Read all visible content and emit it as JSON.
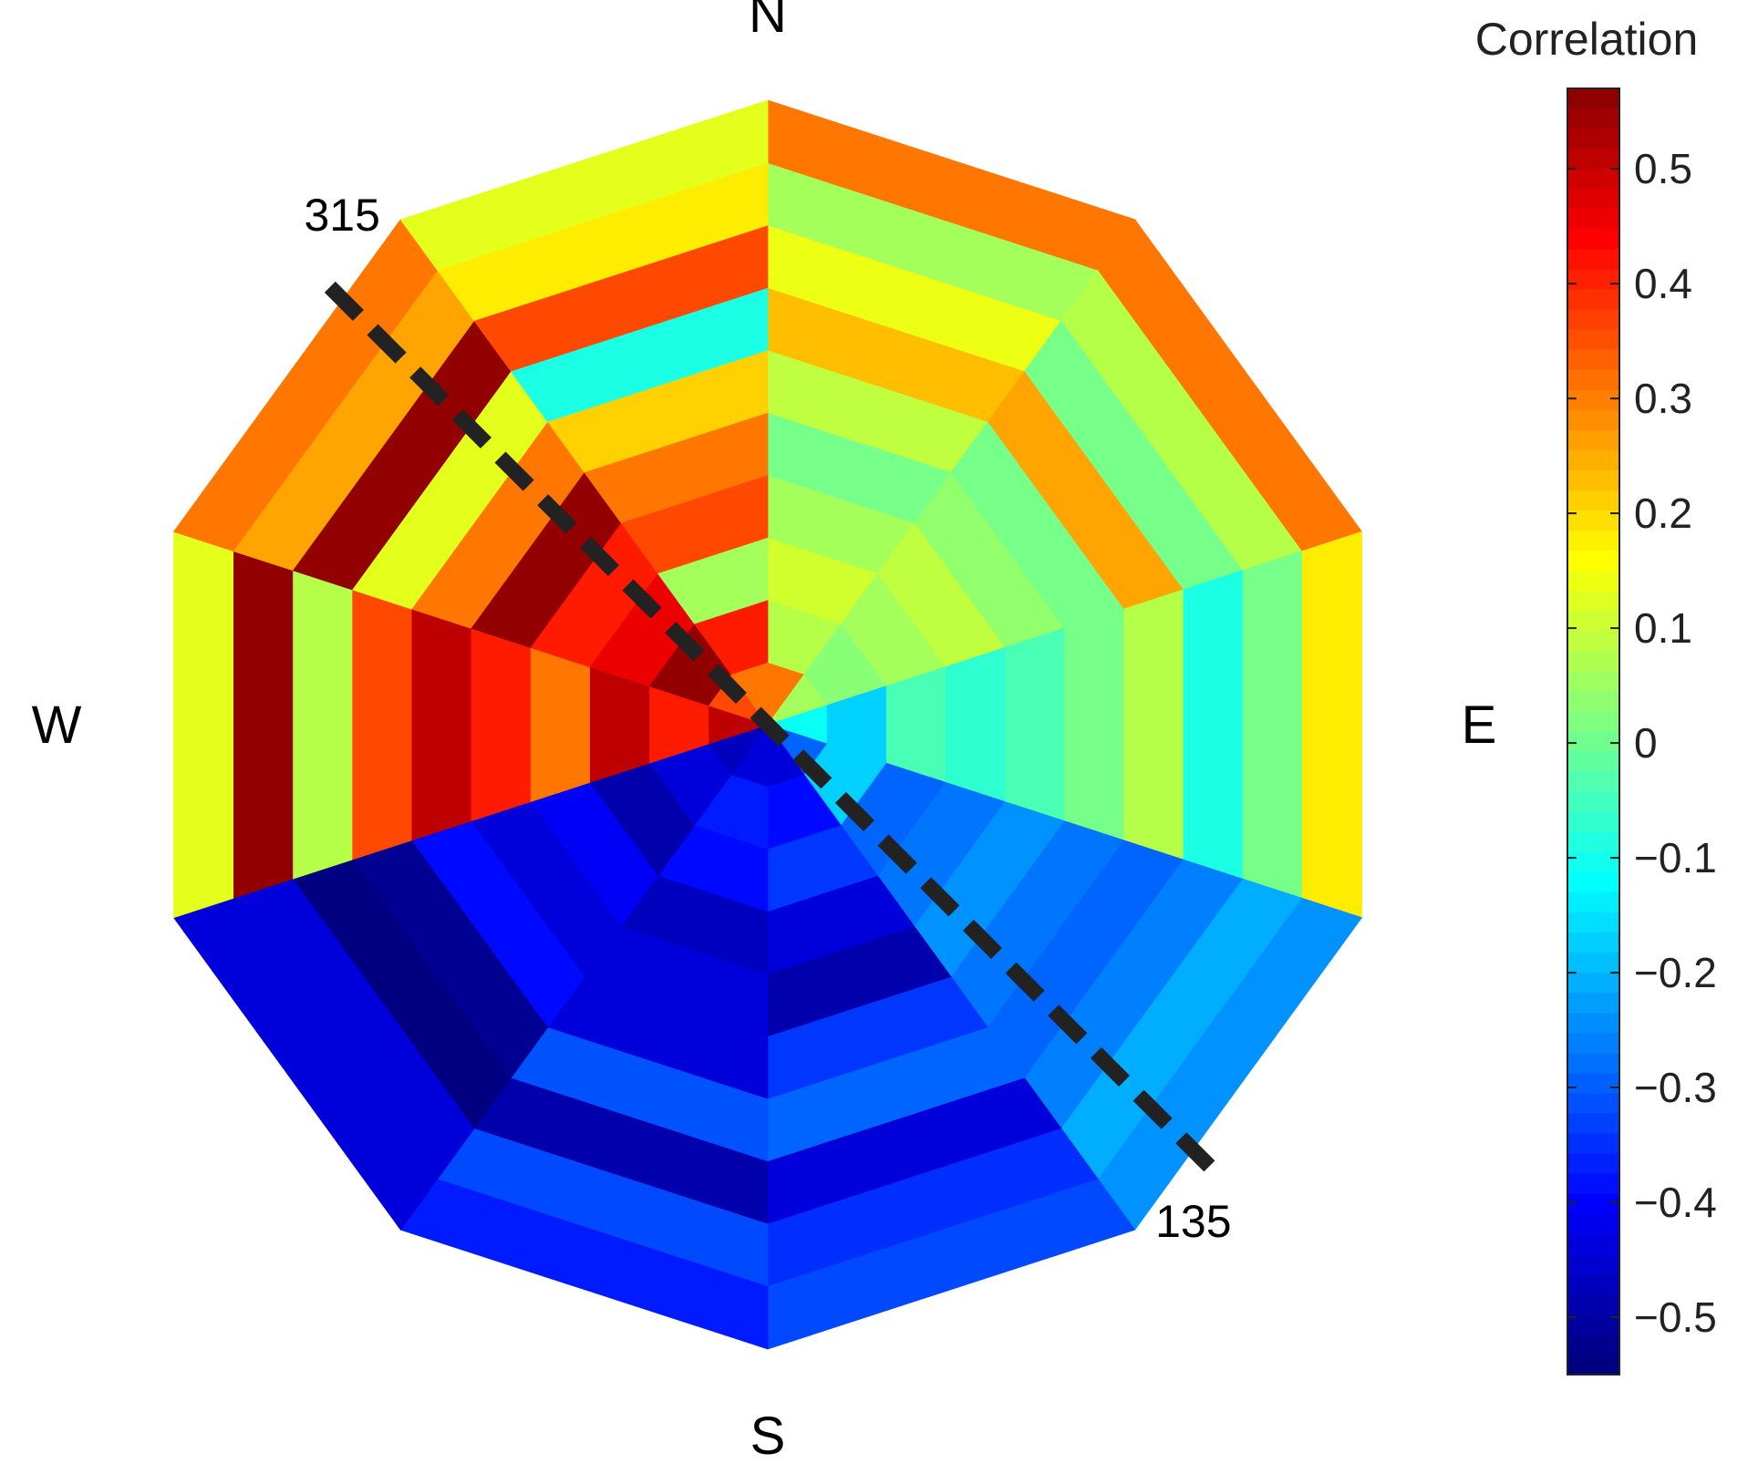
{
  "chart_data": {
    "type": "heatmap",
    "subtype": "polar-sector-rings",
    "direction_labels": [
      "N",
      "E",
      "S",
      "W"
    ],
    "direction_angles": [
      0,
      90,
      180,
      270
    ],
    "sector_count": 10,
    "ring_count": 10,
    "sectors": [
      {
        "from_deg": 0,
        "to_deg": 36,
        "rings": [
          0.3,
          0.07,
          0.1,
          0.05,
          0.0,
          0.08,
          0.22,
          0.13,
          0.05,
          0.3
        ]
      },
      {
        "from_deg": 36,
        "to_deg": 72,
        "rings": [
          0.05,
          0.02,
          0.05,
          0.08,
          0.03,
          0.0,
          0.25,
          0.0,
          0.07,
          0.3
        ]
      },
      {
        "from_deg": 72,
        "to_deg": 108,
        "rings": [
          -0.12,
          -0.18,
          -0.05,
          -0.08,
          -0.05,
          0.0,
          0.07,
          -0.1,
          0.0,
          0.17
        ]
      },
      {
        "from_deg": 108,
        "to_deg": 144,
        "rings": [
          -0.3,
          -0.18,
          -0.3,
          -0.28,
          -0.25,
          -0.28,
          -0.3,
          -0.27,
          -0.22,
          -0.25
        ]
      },
      {
        "from_deg": 144,
        "to_deg": 180,
        "rings": [
          -0.45,
          -0.4,
          -0.35,
          -0.45,
          -0.5,
          -0.35,
          -0.3,
          -0.45,
          -0.36,
          -0.33
        ]
      },
      {
        "from_deg": 180,
        "to_deg": 216,
        "rings": [
          -0.45,
          -0.38,
          -0.4,
          -0.48,
          -0.45,
          -0.45,
          -0.32,
          -0.5,
          -0.33,
          -0.38
        ]
      },
      {
        "from_deg": 216,
        "to_deg": 252,
        "rings": [
          -0.48,
          -0.45,
          -0.5,
          -0.42,
          -0.45,
          -0.4,
          -0.53,
          -0.55,
          -0.45,
          -0.45
        ]
      },
      {
        "from_deg": 252,
        "to_deg": 288,
        "rings": [
          0.5,
          0.4,
          0.5,
          0.3,
          0.4,
          0.5,
          0.35,
          0.07,
          0.55,
          0.12
        ]
      },
      {
        "from_deg": 288,
        "to_deg": 324,
        "rings": [
          0.35,
          0.55,
          0.45,
          0.4,
          0.55,
          0.3,
          0.12,
          0.55,
          0.25,
          0.3
        ]
      },
      {
        "from_deg": 324,
        "to_deg": 360,
        "rings": [
          0.3,
          0.4,
          0.05,
          0.35,
          0.3,
          0.2,
          -0.1,
          0.35,
          0.17,
          0.12
        ]
      }
    ],
    "dashed_line": {
      "angles_deg": [
        135,
        315
      ],
      "labels": [
        "135",
        "315"
      ]
    },
    "colorbar": {
      "title": "Correlation",
      "colormap": "jet",
      "range": [
        -0.55,
        0.57
      ],
      "ticks": [
        0.5,
        0.4,
        0.3,
        0.2,
        0.1,
        0,
        -0.1,
        -0.2,
        -0.3,
        -0.4,
        -0.5
      ],
      "tick_labels": [
        "0.5",
        "0.4",
        "0.3",
        "0.2",
        "0.1",
        "0",
        "−0.1",
        "−0.2",
        "−0.3",
        "−0.4",
        "−0.5"
      ]
    }
  }
}
